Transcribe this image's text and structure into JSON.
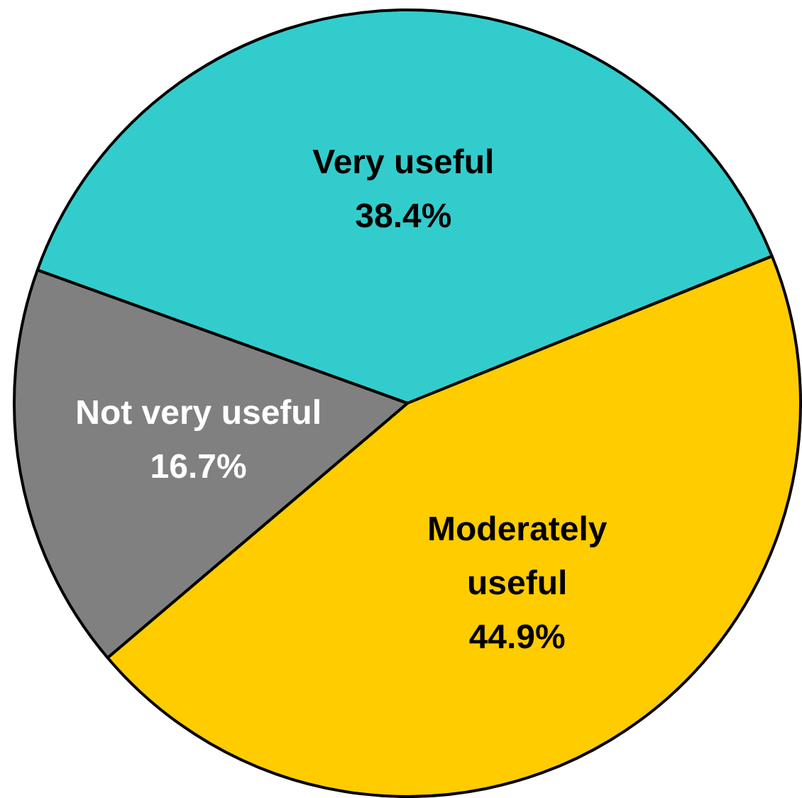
{
  "chart_data": {
    "type": "pie",
    "categories": [
      "Very useful",
      "Moderately useful",
      "Not very useful"
    ],
    "values": [
      38.4,
      44.9,
      16.7
    ],
    "colors": [
      "#33cccc",
      "#ffcc00",
      "#808080"
    ],
    "value_labels": [
      "38.4%",
      "44.9%",
      "16.7%"
    ],
    "legend": false
  }
}
